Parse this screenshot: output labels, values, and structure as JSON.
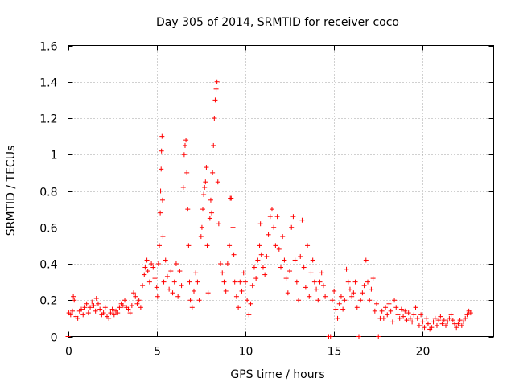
{
  "chart_data": {
    "type": "scatter",
    "title": "Day 305 of 2014, SRMTID for receiver coco",
    "xlabel": "GPS time / hours",
    "ylabel": "SRMTID / TECUs",
    "xlim": [
      0,
      24
    ],
    "ylim": [
      0,
      1.6
    ],
    "xticks": [
      0,
      5,
      10,
      15,
      20
    ],
    "xtick_labels": [
      "0",
      "5",
      "10",
      "15",
      "20"
    ],
    "yticks": [
      0,
      0.2,
      0.4,
      0.6,
      0.8,
      1.0,
      1.2,
      1.4,
      1.6
    ],
    "ytick_labels": [
      "0",
      "0.2",
      "0.4",
      "0.6",
      "0.8",
      "1",
      "1.2",
      "1.4",
      "1.6"
    ],
    "grid": true,
    "marker": "plus",
    "color": "#ff0000",
    "series": [
      {
        "name": "SRMTID",
        "points": [
          [
            0.0,
            0.0
          ],
          [
            0.05,
            0.13
          ],
          [
            0.15,
            0.12
          ],
          [
            0.25,
            0.14
          ],
          [
            0.3,
            0.22
          ],
          [
            0.35,
            0.2
          ],
          [
            0.45,
            0.11
          ],
          [
            0.55,
            0.1
          ],
          [
            0.65,
            0.14
          ],
          [
            0.75,
            0.15
          ],
          [
            0.85,
            0.12
          ],
          [
            0.95,
            0.16
          ],
          [
            1.05,
            0.18
          ],
          [
            1.15,
            0.13
          ],
          [
            1.25,
            0.16
          ],
          [
            1.35,
            0.19
          ],
          [
            1.45,
            0.17
          ],
          [
            1.55,
            0.14
          ],
          [
            1.6,
            0.21
          ],
          [
            1.7,
            0.18
          ],
          [
            1.8,
            0.15
          ],
          [
            1.9,
            0.12
          ],
          [
            2.0,
            0.13
          ],
          [
            2.1,
            0.16
          ],
          [
            2.2,
            0.11
          ],
          [
            2.3,
            0.1
          ],
          [
            2.4,
            0.13
          ],
          [
            2.5,
            0.15
          ],
          [
            2.6,
            0.12
          ],
          [
            2.7,
            0.14
          ],
          [
            2.8,
            0.13
          ],
          [
            2.9,
            0.16
          ],
          [
            3.0,
            0.18
          ],
          [
            3.1,
            0.17
          ],
          [
            3.2,
            0.2
          ],
          [
            3.3,
            0.16
          ],
          [
            3.4,
            0.15
          ],
          [
            3.5,
            0.13
          ],
          [
            3.6,
            0.17
          ],
          [
            3.7,
            0.24
          ],
          [
            3.8,
            0.22
          ],
          [
            3.9,
            0.18
          ],
          [
            4.0,
            0.2
          ],
          [
            4.1,
            0.16
          ],
          [
            4.2,
            0.28
          ],
          [
            4.3,
            0.34
          ],
          [
            4.35,
            0.38
          ],
          [
            4.45,
            0.42
          ],
          [
            4.5,
            0.36
          ],
          [
            4.6,
            0.3
          ],
          [
            4.7,
            0.4
          ],
          [
            4.8,
            0.38
          ],
          [
            4.9,
            0.32
          ],
          [
            5.0,
            0.27
          ],
          [
            5.05,
            0.22
          ],
          [
            5.1,
            0.4
          ],
          [
            5.15,
            0.5
          ],
          [
            5.2,
            0.68
          ],
          [
            5.22,
            0.8
          ],
          [
            5.25,
            0.92
          ],
          [
            5.27,
            1.02
          ],
          [
            5.3,
            1.1
          ],
          [
            5.33,
            0.75
          ],
          [
            5.35,
            0.55
          ],
          [
            5.4,
            0.3
          ],
          [
            5.5,
            0.42
          ],
          [
            5.6,
            0.33
          ],
          [
            5.7,
            0.26
          ],
          [
            5.8,
            0.36
          ],
          [
            5.9,
            0.24
          ],
          [
            6.0,
            0.3
          ],
          [
            6.1,
            0.4
          ],
          [
            6.2,
            0.22
          ],
          [
            6.3,
            0.36
          ],
          [
            6.4,
            0.28
          ],
          [
            6.5,
            0.82
          ],
          [
            6.55,
            1.0
          ],
          [
            6.6,
            1.05
          ],
          [
            6.65,
            1.08
          ],
          [
            6.7,
            0.9
          ],
          [
            6.75,
            0.7
          ],
          [
            6.8,
            0.5
          ],
          [
            6.85,
            0.3
          ],
          [
            6.9,
            0.2
          ],
          [
            7.0,
            0.16
          ],
          [
            7.1,
            0.25
          ],
          [
            7.2,
            0.35
          ],
          [
            7.3,
            0.3
          ],
          [
            7.4,
            0.2
          ],
          [
            7.5,
            0.55
          ],
          [
            7.55,
            0.6
          ],
          [
            7.6,
            0.7
          ],
          [
            7.65,
            0.78
          ],
          [
            7.7,
            0.82
          ],
          [
            7.75,
            0.85
          ],
          [
            7.8,
            0.93
          ],
          [
            7.85,
            0.5
          ],
          [
            7.9,
            0.24
          ],
          [
            8.0,
            0.65
          ],
          [
            8.05,
            0.75
          ],
          [
            8.1,
            0.68
          ],
          [
            8.15,
            0.9
          ],
          [
            8.2,
            1.05
          ],
          [
            8.25,
            1.2
          ],
          [
            8.3,
            1.3
          ],
          [
            8.35,
            1.36
          ],
          [
            8.4,
            1.4
          ],
          [
            8.45,
            0.85
          ],
          [
            8.5,
            0.62
          ],
          [
            8.6,
            0.4
          ],
          [
            8.7,
            0.35
          ],
          [
            8.8,
            0.3
          ],
          [
            8.9,
            0.25
          ],
          [
            9.0,
            0.4
          ],
          [
            9.1,
            0.5
          ],
          [
            9.15,
            0.76
          ],
          [
            9.2,
            0.76
          ],
          [
            9.3,
            0.6
          ],
          [
            9.35,
            0.45
          ],
          [
            9.4,
            0.3
          ],
          [
            9.5,
            0.22
          ],
          [
            9.6,
            0.16
          ],
          [
            9.7,
            0.3
          ],
          [
            9.8,
            0.25
          ],
          [
            9.9,
            0.35
          ],
          [
            10.0,
            0.3
          ],
          [
            10.1,
            0.2
          ],
          [
            10.2,
            0.12
          ],
          [
            10.3,
            0.18
          ],
          [
            10.4,
            0.28
          ],
          [
            10.5,
            0.38
          ],
          [
            10.6,
            0.32
          ],
          [
            10.7,
            0.42
          ],
          [
            10.8,
            0.5
          ],
          [
            10.85,
            0.62
          ],
          [
            10.9,
            0.45
          ],
          [
            11.0,
            0.38
          ],
          [
            11.1,
            0.34
          ],
          [
            11.2,
            0.44
          ],
          [
            11.3,
            0.56
          ],
          [
            11.4,
            0.66
          ],
          [
            11.5,
            0.7
          ],
          [
            11.6,
            0.6
          ],
          [
            11.7,
            0.5
          ],
          [
            11.8,
            0.66
          ],
          [
            11.9,
            0.48
          ],
          [
            12.0,
            0.38
          ],
          [
            12.1,
            0.55
          ],
          [
            12.2,
            0.42
          ],
          [
            12.3,
            0.32
          ],
          [
            12.4,
            0.24
          ],
          [
            12.5,
            0.36
          ],
          [
            12.6,
            0.6
          ],
          [
            12.7,
            0.66
          ],
          [
            12.8,
            0.42
          ],
          [
            12.9,
            0.3
          ],
          [
            13.0,
            0.2
          ],
          [
            13.1,
            0.44
          ],
          [
            13.2,
            0.64
          ],
          [
            13.3,
            0.38
          ],
          [
            13.4,
            0.27
          ],
          [
            13.5,
            0.5
          ],
          [
            13.6,
            0.22
          ],
          [
            13.7,
            0.35
          ],
          [
            13.8,
            0.42
          ],
          [
            13.9,
            0.3
          ],
          [
            14.0,
            0.26
          ],
          [
            14.1,
            0.2
          ],
          [
            14.2,
            0.3
          ],
          [
            14.3,
            0.35
          ],
          [
            14.4,
            0.28
          ],
          [
            14.5,
            0.22
          ],
          [
            14.7,
            0.0
          ],
          [
            14.8,
            0.0
          ],
          [
            14.9,
            0.2
          ],
          [
            15.0,
            0.25
          ],
          [
            15.1,
            0.15
          ],
          [
            15.2,
            0.1
          ],
          [
            15.3,
            0.18
          ],
          [
            15.4,
            0.22
          ],
          [
            15.5,
            0.15
          ],
          [
            15.6,
            0.2
          ],
          [
            15.7,
            0.37
          ],
          [
            15.8,
            0.3
          ],
          [
            15.9,
            0.26
          ],
          [
            16.0,
            0.22
          ],
          [
            16.1,
            0.24
          ],
          [
            16.2,
            0.3
          ],
          [
            16.3,
            0.16
          ],
          [
            16.4,
            0.0
          ],
          [
            16.5,
            0.2
          ],
          [
            16.6,
            0.24
          ],
          [
            16.7,
            0.28
          ],
          [
            16.8,
            0.42
          ],
          [
            16.9,
            0.3
          ],
          [
            17.0,
            0.2
          ],
          [
            17.1,
            0.26
          ],
          [
            17.2,
            0.32
          ],
          [
            17.3,
            0.14
          ],
          [
            17.4,
            0.18
          ],
          [
            17.5,
            0.0
          ],
          [
            17.6,
            0.1
          ],
          [
            17.7,
            0.14
          ],
          [
            17.8,
            0.1
          ],
          [
            17.9,
            0.16
          ],
          [
            18.0,
            0.12
          ],
          [
            18.1,
            0.18
          ],
          [
            18.2,
            0.14
          ],
          [
            18.3,
            0.08
          ],
          [
            18.4,
            0.2
          ],
          [
            18.5,
            0.16
          ],
          [
            18.6,
            0.12
          ],
          [
            18.7,
            0.1
          ],
          [
            18.8,
            0.15
          ],
          [
            18.9,
            0.11
          ],
          [
            19.0,
            0.14
          ],
          [
            19.1,
            0.09
          ],
          [
            19.2,
            0.13
          ],
          [
            19.3,
            0.1
          ],
          [
            19.4,
            0.08
          ],
          [
            19.5,
            0.12
          ],
          [
            19.6,
            0.16
          ],
          [
            19.7,
            0.1
          ],
          [
            19.8,
            0.06
          ],
          [
            19.9,
            0.12
          ],
          [
            20.0,
            0.08
          ],
          [
            20.1,
            0.05
          ],
          [
            20.2,
            0.1
          ],
          [
            20.3,
            0.07
          ],
          [
            20.4,
            0.04
          ],
          [
            20.5,
            0.05
          ],
          [
            20.6,
            0.08
          ],
          [
            20.7,
            0.1
          ],
          [
            20.8,
            0.06
          ],
          [
            20.9,
            0.09
          ],
          [
            21.0,
            0.11
          ],
          [
            21.1,
            0.07
          ],
          [
            21.2,
            0.09
          ],
          [
            21.3,
            0.06
          ],
          [
            21.4,
            0.08
          ],
          [
            21.5,
            0.1
          ],
          [
            21.6,
            0.12
          ],
          [
            21.7,
            0.09
          ],
          [
            21.8,
            0.07
          ],
          [
            21.9,
            0.05
          ],
          [
            22.0,
            0.07
          ],
          [
            22.1,
            0.09
          ],
          [
            22.2,
            0.06
          ],
          [
            22.3,
            0.08
          ],
          [
            22.4,
            0.1
          ],
          [
            22.5,
            0.12
          ],
          [
            22.6,
            0.14
          ],
          [
            22.7,
            0.13
          ]
        ]
      }
    ]
  }
}
